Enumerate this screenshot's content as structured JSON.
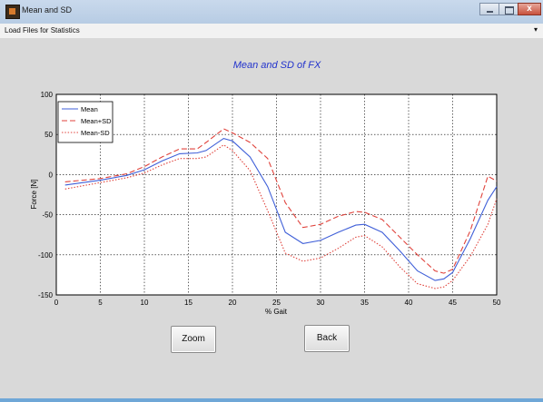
{
  "window": {
    "title": "Mean and SD",
    "close_glyph": "x"
  },
  "menu": {
    "item": "Load Files for Statistics",
    "arrow": "▾"
  },
  "buttons": {
    "zoom": "Zoom",
    "back": "Back"
  },
  "colors": {
    "mean": "#3f5fd8",
    "mean_plus_sd": "#e0433c",
    "mean_minus_sd": "#e0433c",
    "title": "#2233cc"
  },
  "chart_data": {
    "type": "line",
    "title": "Mean and SD of FX",
    "xlabel": "% Gait",
    "ylabel": "Force [N]",
    "xlim": [
      0,
      50
    ],
    "ylim": [
      -150,
      100
    ],
    "xticks": [
      0,
      5,
      10,
      15,
      20,
      25,
      30,
      35,
      40,
      45,
      50
    ],
    "yticks": [
      100,
      50,
      0,
      -50,
      -100,
      -150
    ],
    "grid": true,
    "legend_placement": "top-left",
    "series": [
      {
        "name": "Mean",
        "style": "solid",
        "x": [
          1,
          5,
          8,
          10,
          12,
          14,
          16,
          17,
          19,
          20,
          22,
          24,
          26,
          28,
          30,
          32,
          34,
          35,
          37,
          39,
          41,
          43,
          44,
          45,
          47,
          49,
          50
        ],
        "y": [
          -13,
          -7,
          -1,
          6,
          17,
          26,
          27,
          30,
          45,
          42,
          22,
          -15,
          -72,
          -86,
          -82,
          -72,
          -63,
          -62,
          -72,
          -95,
          -120,
          -132,
          -130,
          -122,
          -80,
          -32,
          -15
        ]
      },
      {
        "name": "Mean+SD",
        "style": "dashed",
        "x": [
          1,
          5,
          8,
          10,
          12,
          14,
          16,
          17,
          19,
          20,
          22,
          24,
          26,
          28,
          30,
          32,
          34,
          35,
          37,
          39,
          41,
          43,
          44,
          45,
          47,
          49,
          50
        ],
        "y": [
          -9,
          -5,
          1,
          10,
          22,
          32,
          32,
          40,
          57,
          52,
          40,
          20,
          -35,
          -66,
          -62,
          -52,
          -46,
          -47,
          -56,
          -78,
          -100,
          -120,
          -123,
          -118,
          -70,
          -2,
          -8
        ]
      },
      {
        "name": "Mean-SD",
        "style": "dotted",
        "x": [
          1,
          5,
          8,
          10,
          12,
          14,
          16,
          17,
          19,
          20,
          22,
          24,
          26,
          28,
          30,
          32,
          34,
          35,
          37,
          39,
          41,
          43,
          44,
          45,
          47,
          49,
          50
        ],
        "y": [
          -18,
          -10,
          -4,
          2,
          12,
          20,
          20,
          22,
          37,
          30,
          5,
          -45,
          -98,
          -108,
          -104,
          -92,
          -78,
          -76,
          -90,
          -115,
          -136,
          -142,
          -140,
          -132,
          -102,
          -62,
          -30
        ]
      }
    ]
  }
}
